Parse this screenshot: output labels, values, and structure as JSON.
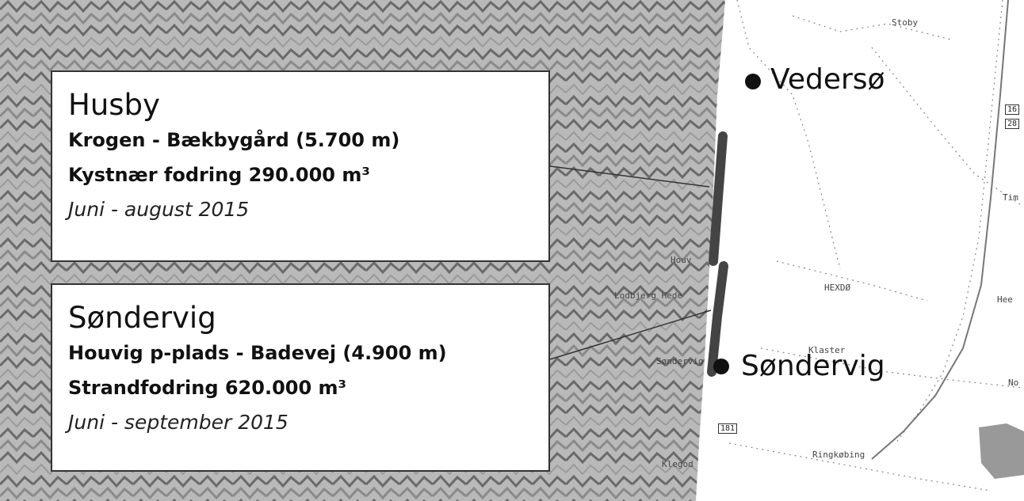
{
  "boxes": {
    "husby": {
      "title": "Husby",
      "stretch": "Krogen - Bækbygård (5.700 m)",
      "method": "Kystnær fodring 290.000 m³",
      "period": "Juni - august 2015"
    },
    "sondervig": {
      "title": "Søndervig",
      "stretch": "Houvig p-plads - Badevej (4.900 m)",
      "method": "Strandfodring 620.000 m³",
      "period": "Juni - september 2015"
    }
  },
  "map": {
    "major_towns": [
      "Vedersø",
      "Søndervig"
    ],
    "minor_labels": {
      "stoby": "Stoby",
      "houvig": "Houv",
      "lodbjerg": "Lodbjerg Hede",
      "sondervig_small": "Søndervig",
      "hedeby": "HEXDØ",
      "kloster": "Klaster",
      "ringkobing": "Ringkøbing",
      "klegod": "Klegod",
      "tim": "Tim",
      "hee": "Hee",
      "no": "No"
    },
    "road_numbers": [
      "16",
      "28",
      "181"
    ]
  },
  "colors": {
    "sea": "#a9a9a9",
    "coast_line": "#444444",
    "box_border": "#333333",
    "dot": "#111111"
  }
}
